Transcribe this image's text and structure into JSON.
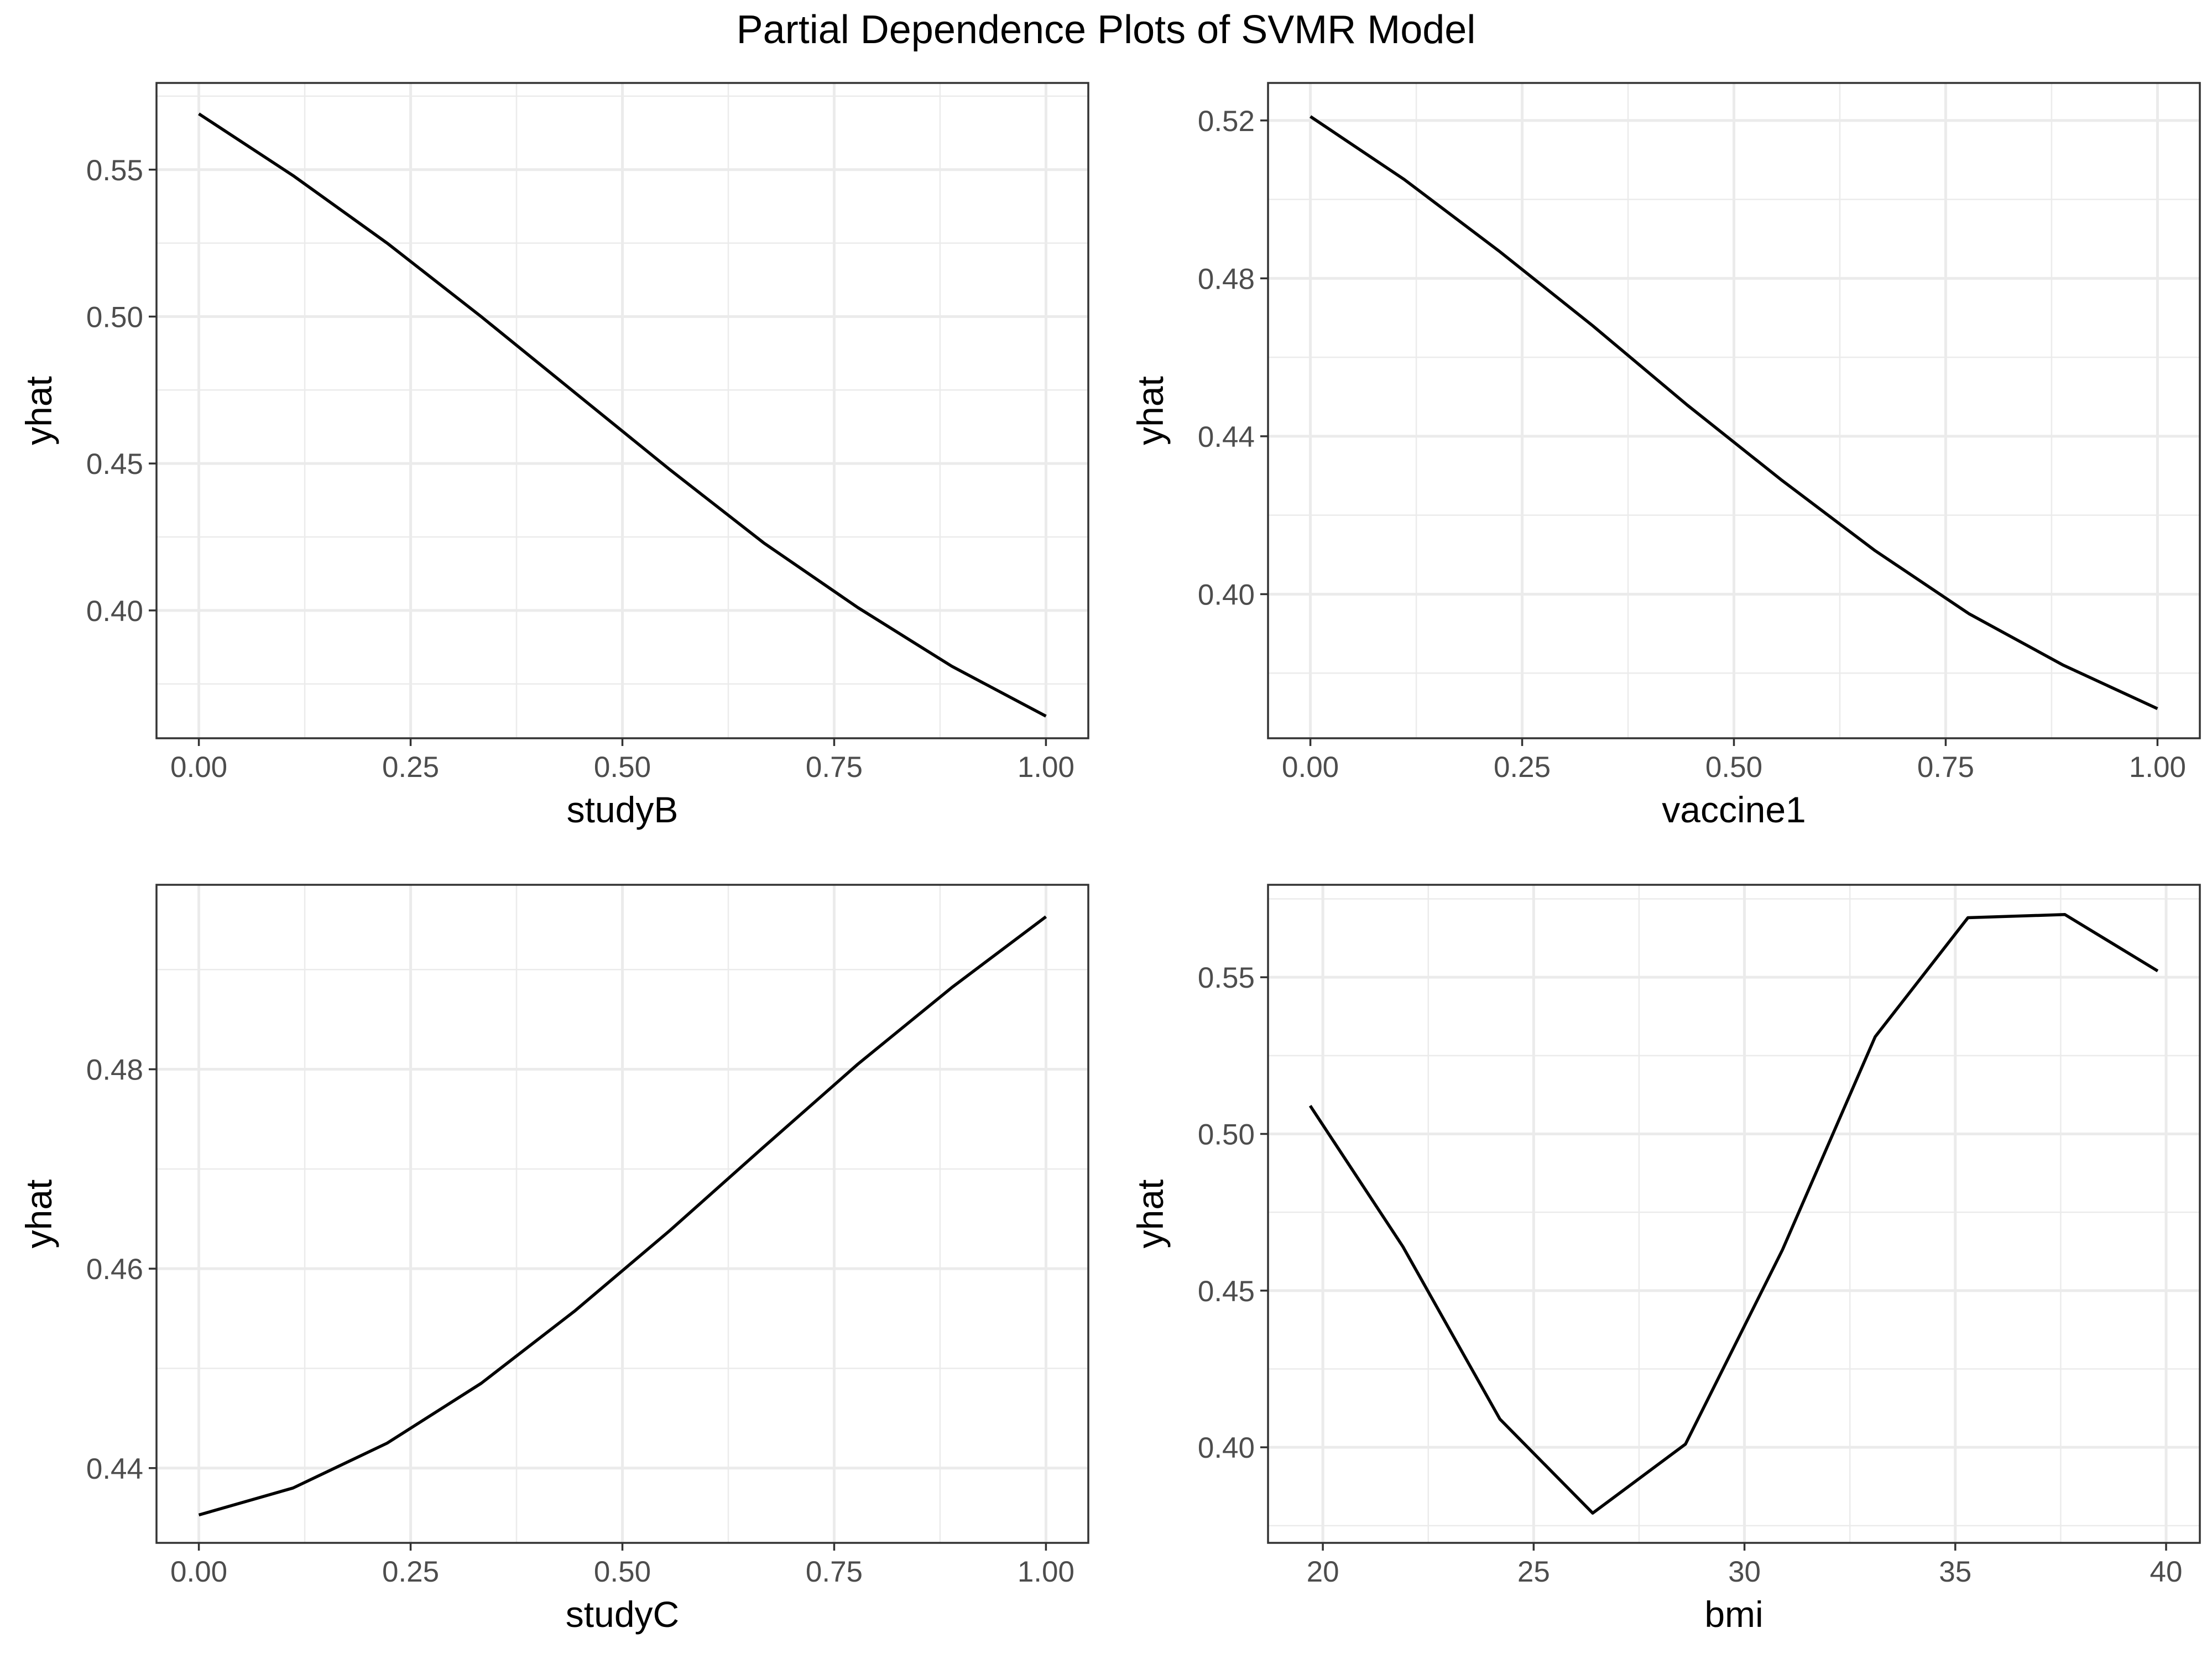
{
  "figure": {
    "title": "Partial Dependence Plots of SVMR Model"
  },
  "colors": {
    "line": "#000000",
    "grid": "#ebebeb",
    "border": "#333333",
    "tick_text": "#4d4d4d"
  },
  "chart_data": [
    {
      "type": "line",
      "xlabel": "studyB",
      "ylabel": "yhat",
      "grid": true,
      "xlim": [
        -0.05,
        1.05
      ],
      "ylim": [
        0.3565,
        0.5795
      ],
      "x_ticks": [
        0,
        0.25,
        0.5,
        0.75,
        1
      ],
      "x_tick_labels": [
        "0.00",
        "0.25",
        "0.50",
        "0.75",
        "1.00"
      ],
      "y_ticks": [
        0.4,
        0.45,
        0.5,
        0.55
      ],
      "y_tick_labels": [
        "0.40",
        "0.45",
        "0.50",
        "0.55"
      ],
      "x": [
        0,
        0.1111,
        0.2222,
        0.3333,
        0.4444,
        0.5556,
        0.6667,
        0.7778,
        0.8889,
        1
      ],
      "y": [
        0.569,
        0.548,
        0.525,
        0.5,
        0.474,
        0.448,
        0.423,
        0.401,
        0.381,
        0.364
      ]
    },
    {
      "type": "line",
      "xlabel": "vaccine1",
      "ylabel": "yhat",
      "grid": true,
      "xlim": [
        -0.05,
        1.05
      ],
      "ylim": [
        0.3635,
        0.5295
      ],
      "x_ticks": [
        0,
        0.25,
        0.5,
        0.75,
        1
      ],
      "x_tick_labels": [
        "0.00",
        "0.25",
        "0.50",
        "0.75",
        "1.00"
      ],
      "y_ticks": [
        0.4,
        0.44,
        0.48,
        0.52
      ],
      "y_tick_labels": [
        "0.40",
        "0.44",
        "0.48",
        "0.52"
      ],
      "x": [
        0,
        0.1111,
        0.2222,
        0.3333,
        0.4444,
        0.5556,
        0.6667,
        0.7778,
        0.8889,
        1
      ],
      "y": [
        0.521,
        0.505,
        0.487,
        0.468,
        0.448,
        0.429,
        0.411,
        0.395,
        0.382,
        0.371
      ]
    },
    {
      "type": "line",
      "xlabel": "studyC",
      "ylabel": "yhat",
      "grid": true,
      "xlim": [
        -0.05,
        1.05
      ],
      "ylim": [
        0.4325,
        0.4985
      ],
      "x_ticks": [
        0,
        0.25,
        0.5,
        0.75,
        1
      ],
      "x_tick_labels": [
        "0.00",
        "0.25",
        "0.50",
        "0.75",
        "1.00"
      ],
      "y_ticks": [
        0.44,
        0.46,
        0.48
      ],
      "y_tick_labels": [
        "0.44",
        "0.46",
        "0.48"
      ],
      "x": [
        0,
        0.1111,
        0.2222,
        0.3333,
        0.4444,
        0.5556,
        0.6667,
        0.7778,
        0.8889,
        1
      ],
      "y": [
        0.4353,
        0.438,
        0.4425,
        0.4485,
        0.4558,
        0.4638,
        0.4722,
        0.4805,
        0.4882,
        0.4953
      ]
    },
    {
      "type": "line",
      "xlabel": "bmi",
      "ylabel": "yhat",
      "grid": true,
      "xlim": [
        18.7,
        40.8
      ],
      "ylim": [
        0.3695,
        0.5795
      ],
      "x_ticks": [
        20,
        25,
        30,
        35,
        40
      ],
      "x_tick_labels": [
        "20",
        "25",
        "30",
        "35",
        "40"
      ],
      "y_ticks": [
        0.4,
        0.45,
        0.5,
        0.55
      ],
      "y_tick_labels": [
        "0.40",
        "0.45",
        "0.50",
        "0.55"
      ],
      "x": [
        19.7,
        21.9,
        24.2,
        26.4,
        28.6,
        30.9,
        33.1,
        35.3,
        37.6,
        39.8
      ],
      "y": [
        0.509,
        0.464,
        0.409,
        0.379,
        0.401,
        0.463,
        0.531,
        0.569,
        0.57,
        0.552
      ]
    }
  ]
}
